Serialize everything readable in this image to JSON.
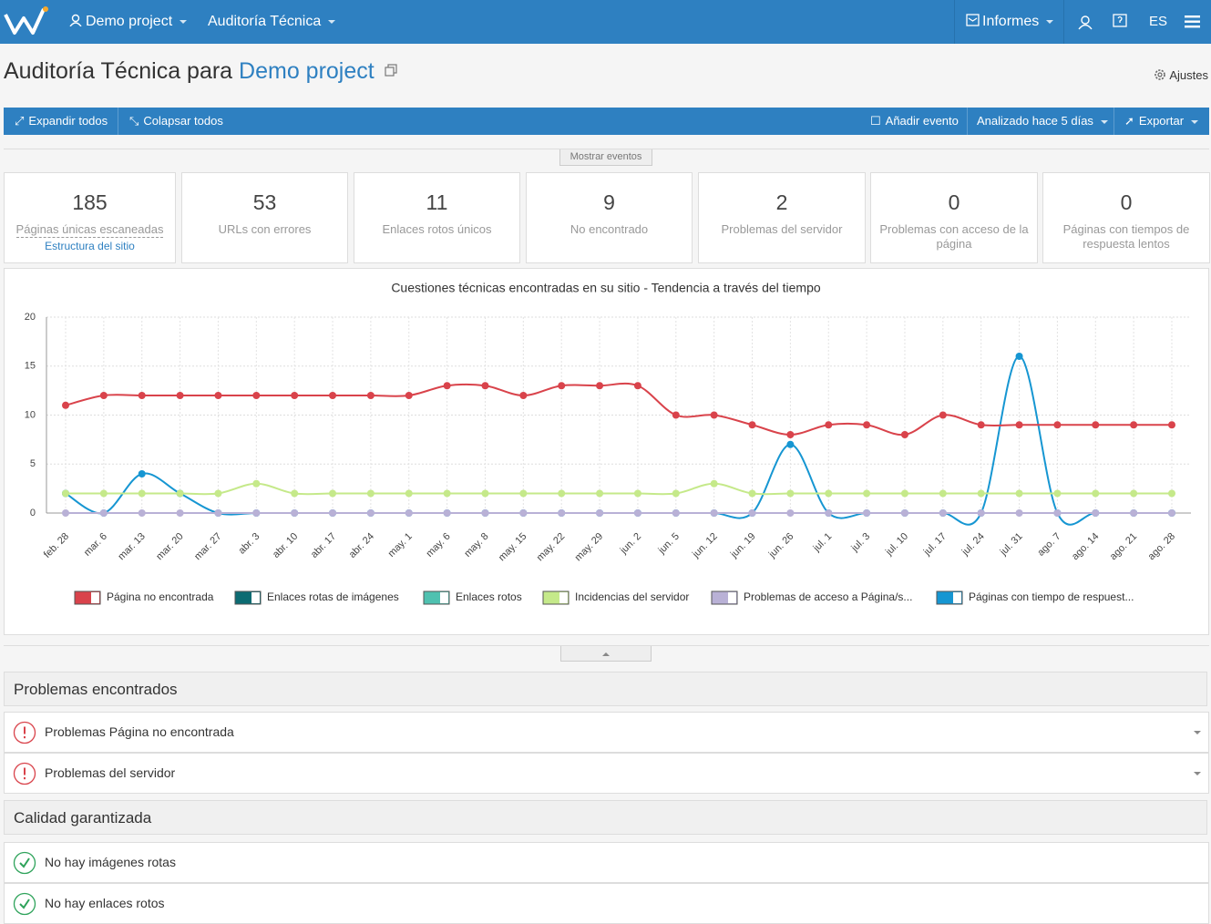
{
  "nav": {
    "project": "Demo project",
    "module": "Auditoría Técnica",
    "reports": "Informes",
    "language": "ES"
  },
  "header": {
    "title": "Auditoría Técnica para",
    "project": "Demo project",
    "settings": "Ajustes"
  },
  "toolbar": {
    "expand": "Expandir todos",
    "collapse": "Colapsar todos",
    "add_event": "Añadir evento",
    "analyzed": "Analizado hace 5 días",
    "export": "Exportar"
  },
  "show_events": "Mostrar eventos",
  "stats": [
    {
      "value": 185,
      "label": "Páginas únicas escaneadas",
      "link": "Estructura del sitio"
    },
    {
      "value": 53,
      "label": "URLs con errores"
    },
    {
      "value": 11,
      "label": "Enlaces rotos únicos"
    },
    {
      "value": 9,
      "label": "No encontrado"
    },
    {
      "value": 2,
      "label": "Problemas del servidor"
    },
    {
      "value": 0,
      "label": "Problemas con acceso de la página"
    },
    {
      "value": 0,
      "label": "Páginas con tiempos de respuesta lentos"
    }
  ],
  "chart_data": {
    "type": "line",
    "title": "Cuestiones técnicas encontradas en su sitio - Tendencia a través del tiempo",
    "categories": [
      "feb. 28",
      "mar. 6",
      "mar. 13",
      "mar. 20",
      "mar. 27",
      "abr. 3",
      "abr. 10",
      "abr. 17",
      "abr. 24",
      "may. 1",
      "may. 6",
      "may. 8",
      "may. 15",
      "may. 22",
      "may. 29",
      "jun. 2",
      "jun. 5",
      "jun. 12",
      "jun. 19",
      "jun. 26",
      "jul. 1",
      "jul. 3",
      "jul. 10",
      "jul. 17",
      "jul. 24",
      "jul. 31",
      "ago. 7",
      "ago. 14",
      "ago. 21",
      "ago. 28"
    ],
    "ylim": [
      0,
      20
    ],
    "yticks": [
      0,
      5,
      10,
      15,
      20
    ],
    "grid": true,
    "smooth": true,
    "series": [
      {
        "name": "Página no encontrada",
        "color": "#d9434b",
        "values": [
          11,
          12,
          12,
          12,
          12,
          12,
          12,
          12,
          12,
          12,
          13,
          13,
          12,
          13,
          13,
          13,
          10,
          10,
          9,
          8,
          9,
          9,
          8,
          10,
          9,
          9,
          9,
          9,
          9,
          9
        ]
      },
      {
        "name": "Enlaces rotas de imágenes",
        "color": "#0c6b72"
      },
      {
        "name": "Enlaces rotos",
        "color": "#4fc1b0"
      },
      {
        "name": "Incidencias del servidor",
        "color": "#c5e98a",
        "values": [
          2,
          2,
          2,
          2,
          2,
          3,
          2,
          2,
          2,
          2,
          2,
          2,
          2,
          2,
          2,
          2,
          2,
          3,
          2,
          2,
          2,
          2,
          2,
          2,
          2,
          2,
          2,
          2,
          2,
          2
        ]
      },
      {
        "name": "Problemas de acceso a Página/s...",
        "color": "#b9b1d6",
        "values": [
          0,
          0,
          0,
          0,
          0,
          0,
          0,
          0,
          0,
          0,
          0,
          0,
          0,
          0,
          0,
          0,
          0,
          0,
          0,
          0,
          0,
          0,
          0,
          0,
          0,
          0,
          0,
          0,
          0,
          0
        ]
      },
      {
        "name": "Páginas con tiempo de respuest...",
        "color": "#1696d2",
        "values": [
          2,
          0,
          4,
          2,
          0,
          0,
          0,
          0,
          0,
          0,
          0,
          0,
          0,
          0,
          0,
          0,
          0,
          0,
          0,
          7,
          0,
          0,
          0,
          0,
          0,
          16,
          0,
          0,
          0,
          0
        ]
      }
    ]
  },
  "sections": [
    {
      "title": "Problemas encontrados",
      "status": "error",
      "items": [
        "Problemas Página no encontrada",
        "Problemas del servidor"
      ]
    },
    {
      "title": "Calidad garantizada",
      "status": "ok",
      "items": [
        "No hay imágenes rotas",
        "No hay enlaces rotos"
      ]
    }
  ]
}
